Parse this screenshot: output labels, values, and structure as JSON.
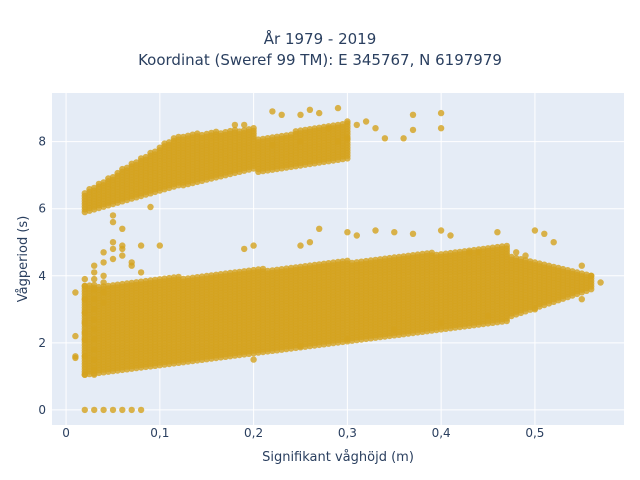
{
  "chart_data": {
    "type": "scatter",
    "title": "År 1979 - 2019",
    "subtitle": "Koordinat (Sweref 99 TM): E 345767, N 6197979",
    "xlabel": "Signifikant våghöjd (m)",
    "ylabel": "Vågperiod (s)",
    "xlim": [
      -0.015,
      0.595
    ],
    "ylim": [
      -0.45,
      9.45
    ],
    "xticks": [
      0,
      0.1,
      0.2,
      0.3,
      0.4,
      0.5
    ],
    "xtick_labels": [
      "0",
      "0,1",
      "0,2",
      "0,3",
      "0,4",
      "0,5"
    ],
    "yticks": [
      0,
      2,
      4,
      6,
      8
    ],
    "ytick_labels": [
      "0",
      "2",
      "4",
      "6",
      "8"
    ],
    "grid": true,
    "colors": {
      "marker": "#d4a21e",
      "plot_bg": "#e5ecf6",
      "grid": "#ffffff",
      "text": "#2a3f5f"
    },
    "series": [
      {
        "columns": [
          [
            0.01,
            1.55
          ],
          [
            0.01,
            1.6
          ],
          [
            0.01,
            2.2
          ],
          [
            0.01,
            3.5
          ],
          [
            0.02,
            0.0
          ],
          [
            0.02,
            1.05
          ],
          [
            0.02,
            1.6
          ],
          [
            0.02,
            2.1
          ],
          [
            0.02,
            2.3
          ],
          [
            0.02,
            2.6
          ],
          [
            0.02,
            2.9
          ],
          [
            0.02,
            3.3
          ],
          [
            0.02,
            3.7
          ],
          [
            0.02,
            3.9
          ],
          [
            0.03,
            0.0
          ],
          [
            0.03,
            1.05
          ],
          [
            0.03,
            1.2
          ],
          [
            0.03,
            1.5
          ],
          [
            0.03,
            1.8
          ],
          [
            0.03,
            2.1
          ],
          [
            0.03,
            2.4
          ],
          [
            0.03,
            2.7
          ],
          [
            0.03,
            3.0
          ],
          [
            0.03,
            3.3
          ],
          [
            0.03,
            3.6
          ],
          [
            0.03,
            3.9
          ],
          [
            0.03,
            4.1
          ],
          [
            0.03,
            4.3
          ],
          [
            0.04,
            0.0
          ],
          [
            0.04,
            3.2
          ],
          [
            0.04,
            3.5
          ],
          [
            0.04,
            3.8
          ],
          [
            0.04,
            4.0
          ],
          [
            0.04,
            4.4
          ],
          [
            0.04,
            4.7
          ],
          [
            0.05,
            0.0
          ],
          [
            0.05,
            4.5
          ],
          [
            0.05,
            4.8
          ],
          [
            0.05,
            5.0
          ],
          [
            0.06,
            0.0
          ],
          [
            0.06,
            4.6
          ],
          [
            0.06,
            4.9
          ],
          [
            0.07,
            0.0
          ],
          [
            0.07,
            4.4
          ],
          [
            0.08,
            0.0
          ],
          [
            0.08,
            4.1
          ],
          [
            0.2,
            1.5
          ],
          [
            0.25,
            1.9
          ],
          [
            0.3,
            2.1
          ],
          [
            0.35,
            2.4
          ],
          [
            0.4,
            2.6
          ],
          [
            0.45,
            2.8
          ],
          [
            0.5,
            3.0
          ],
          [
            0.55,
            3.3
          ]
        ],
        "bands": [
          {
            "x_from": 0.02,
            "x_to": 0.47,
            "x_step": 0.005,
            "lo_start": 1.05,
            "lo_end": 2.65,
            "hi_start": 3.7,
            "hi_end": 4.9
          },
          {
            "x_from": 0.475,
            "x_to": 0.56,
            "x_step": 0.005,
            "lo_start": 2.8,
            "lo_end": 3.6,
            "hi_start": 4.6,
            "hi_end": 4.0
          },
          {
            "x_from": 0.02,
            "x_to": 0.12,
            "x_step": 0.005,
            "lo_start": 5.9,
            "lo_end": 6.7,
            "hi_start": 6.5,
            "hi_end": 8.2
          },
          {
            "x_from": 0.125,
            "x_to": 0.2,
            "x_step": 0.005,
            "lo_start": 6.7,
            "lo_end": 7.2,
            "hi_start": 8.2,
            "hi_end": 8.4
          },
          {
            "x_from": 0.205,
            "x_to": 0.3,
            "x_step": 0.005,
            "lo_start": 7.1,
            "lo_end": 7.5,
            "hi_start": 8.1,
            "hi_end": 8.6
          }
        ],
        "outliers": [
          [
            0.06,
            5.4
          ],
          [
            0.06,
            4.8
          ],
          [
            0.05,
            5.8
          ],
          [
            0.05,
            5.6
          ],
          [
            0.07,
            4.3
          ],
          [
            0.08,
            4.9
          ],
          [
            0.09,
            6.05
          ],
          [
            0.1,
            4.9
          ],
          [
            0.19,
            4.8
          ],
          [
            0.2,
            4.9
          ],
          [
            0.25,
            4.9
          ],
          [
            0.26,
            5.0
          ],
          [
            0.27,
            5.4
          ],
          [
            0.3,
            5.3
          ],
          [
            0.31,
            5.2
          ],
          [
            0.33,
            5.35
          ],
          [
            0.35,
            5.3
          ],
          [
            0.37,
            5.25
          ],
          [
            0.4,
            5.35
          ],
          [
            0.41,
            5.2
          ],
          [
            0.46,
            5.3
          ],
          [
            0.5,
            5.35
          ],
          [
            0.51,
            5.25
          ],
          [
            0.52,
            5.0
          ],
          [
            0.55,
            4.3
          ],
          [
            0.56,
            4.0
          ],
          [
            0.57,
            3.8
          ],
          [
            0.48,
            4.7
          ],
          [
            0.49,
            4.6
          ],
          [
            0.43,
            4.7
          ],
          [
            0.44,
            4.7
          ],
          [
            0.22,
            8.9
          ],
          [
            0.23,
            8.8
          ],
          [
            0.25,
            8.8
          ],
          [
            0.26,
            8.95
          ],
          [
            0.27,
            8.85
          ],
          [
            0.28,
            8.4
          ],
          [
            0.29,
            9.0
          ],
          [
            0.3,
            8.6
          ],
          [
            0.31,
            8.5
          ],
          [
            0.32,
            8.6
          ],
          [
            0.33,
            8.4
          ],
          [
            0.34,
            8.1
          ],
          [
            0.36,
            8.1
          ],
          [
            0.37,
            8.8
          ],
          [
            0.37,
            8.35
          ],
          [
            0.4,
            8.85
          ],
          [
            0.4,
            8.4
          ],
          [
            0.25,
            8.0
          ],
          [
            0.22,
            7.9
          ],
          [
            0.18,
            8.5
          ],
          [
            0.19,
            8.5
          ],
          [
            0.29,
            8.0
          ],
          [
            0.3,
            8.1
          ]
        ]
      }
    ]
  }
}
